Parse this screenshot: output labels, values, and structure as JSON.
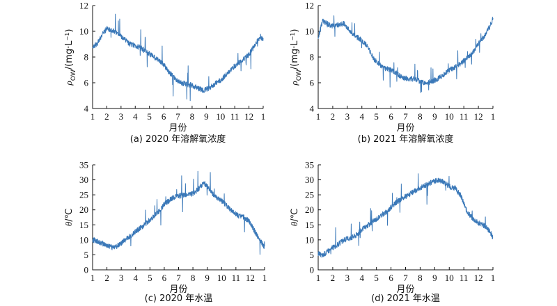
{
  "chart_data": [
    {
      "type": "line",
      "caption": "(a) 2020 年溶解氧浓度",
      "xlabel": "月份",
      "ylabel": "ρOW/(mg·L⁻¹)",
      "ylabel_main": "ρ",
      "ylabel_sub": "OW",
      "ylabel_rest": "/(mg·L",
      "ylabel_sup": "−1",
      "ylabel_close": ")",
      "xlim": [
        1,
        13
      ],
      "ylim": [
        4,
        12
      ],
      "x_ticks": [
        1,
        2,
        3,
        4,
        5,
        6,
        7,
        8,
        9,
        10,
        11,
        12,
        13
      ],
      "x_tick_labels": [
        "1",
        "2",
        "3",
        "4",
        "5",
        "6",
        "7",
        "8",
        "9",
        "10",
        "11",
        "12",
        "1"
      ],
      "y_ticks": [
        4,
        6,
        8,
        10,
        12
      ],
      "y_tick_labels": [
        "4",
        "6",
        "8",
        "10",
        "12"
      ],
      "series": [
        {
          "color": "#3a78b8",
          "x": [
            1.0,
            1.3,
            1.6,
            2.0,
            2.4,
            2.8,
            3.2,
            3.6,
            4.0,
            4.4,
            4.8,
            5.2,
            5.6,
            6.0,
            6.4,
            6.8,
            7.2,
            7.6,
            8.0,
            8.4,
            8.8,
            9.2,
            9.6,
            10.0,
            10.4,
            10.8,
            11.2,
            11.6,
            12.0,
            12.4,
            12.8,
            13.0
          ],
          "y": [
            8.8,
            9.0,
            9.6,
            10.2,
            10.1,
            9.8,
            9.4,
            9.0,
            8.9,
            8.7,
            8.4,
            8.1,
            7.8,
            7.4,
            6.8,
            6.3,
            6.0,
            5.9,
            5.8,
            5.6,
            5.4,
            5.6,
            5.9,
            6.2,
            6.6,
            7.1,
            7.5,
            7.8,
            8.2,
            8.9,
            9.6,
            9.3
          ]
        }
      ]
    },
    {
      "type": "line",
      "caption": "(b) 2021 年溶解氧浓度",
      "xlabel": "月份",
      "ylabel": "ρOW/(mg·L⁻¹)",
      "ylabel_main": "ρ",
      "ylabel_sub": "OW",
      "ylabel_rest": "/(mg·L",
      "ylabel_sup": "−1",
      "ylabel_close": ")",
      "xlim": [
        1,
        13
      ],
      "ylim": [
        4,
        12
      ],
      "x_ticks": [
        1,
        2,
        3,
        4,
        5,
        6,
        7,
        8,
        9,
        10,
        11,
        12,
        13
      ],
      "x_tick_labels": [
        "1",
        "2",
        "3",
        "4",
        "5",
        "6",
        "7",
        "8",
        "9",
        "10",
        "11",
        "12",
        "1"
      ],
      "y_ticks": [
        4,
        6,
        8,
        10,
        12
      ],
      "y_tick_labels": [
        "4",
        "6",
        "8",
        "10",
        "12"
      ],
      "series": [
        {
          "color": "#3a78b8",
          "x": [
            1.0,
            1.3,
            1.6,
            2.0,
            2.4,
            2.8,
            3.2,
            3.6,
            4.0,
            4.4,
            4.8,
            5.2,
            5.6,
            6.0,
            6.4,
            6.8,
            7.2,
            7.6,
            8.0,
            8.4,
            8.8,
            9.2,
            9.6,
            10.0,
            10.4,
            10.8,
            11.2,
            11.6,
            12.0,
            12.4,
            12.8,
            13.0
          ],
          "y": [
            9.5,
            10.8,
            10.6,
            10.4,
            10.5,
            10.6,
            10.0,
            9.6,
            9.3,
            8.8,
            7.9,
            7.4,
            7.1,
            7.0,
            6.7,
            6.4,
            6.3,
            6.3,
            6.1,
            6.0,
            6.1,
            6.3,
            6.6,
            7.0,
            7.2,
            7.5,
            7.9,
            8.3,
            9.0,
            9.6,
            10.4,
            11.0
          ]
        }
      ]
    },
    {
      "type": "line",
      "caption": "(c) 2020 年水温",
      "xlabel": "月份",
      "ylabel": "θ/℃",
      "ylabel_main": "θ",
      "ylabel_sub": "",
      "ylabel_rest": "/℃",
      "ylabel_sup": "",
      "ylabel_close": "",
      "xlim": [
        1,
        13
      ],
      "ylim": [
        0,
        35
      ],
      "x_ticks": [
        1,
        2,
        3,
        4,
        5,
        6,
        7,
        8,
        9,
        10,
        11,
        12,
        13
      ],
      "x_tick_labels": [
        "1",
        "2",
        "3",
        "4",
        "5",
        "6",
        "7",
        "8",
        "9",
        "10",
        "11",
        "12",
        "1"
      ],
      "y_ticks": [
        0,
        5,
        10,
        15,
        20,
        25,
        30,
        35
      ],
      "y_tick_labels": [
        "0",
        "5",
        "10",
        "15",
        "20",
        "25",
        "30",
        "35"
      ],
      "series": [
        {
          "color": "#3a78b8",
          "x": [
            1.0,
            1.3,
            1.6,
            2.0,
            2.4,
            2.8,
            3.2,
            3.6,
            4.0,
            4.4,
            4.8,
            5.2,
            5.6,
            6.0,
            6.4,
            6.8,
            7.2,
            7.6,
            8.0,
            8.4,
            8.8,
            9.2,
            9.6,
            10.0,
            10.4,
            10.8,
            11.2,
            11.6,
            12.0,
            12.4,
            12.8,
            13.0
          ],
          "y": [
            10.0,
            9.6,
            9.0,
            8.2,
            7.4,
            8.2,
            9.6,
            11.2,
            12.8,
            14.2,
            15.8,
            17.6,
            19.4,
            21.8,
            23.4,
            24.4,
            24.8,
            25.0,
            25.4,
            27.0,
            29.0,
            26.5,
            24.2,
            23.0,
            21.2,
            19.2,
            18.0,
            17.4,
            15.8,
            12.0,
            9.0,
            7.6
          ]
        }
      ]
    },
    {
      "type": "line",
      "caption": "(d) 2021 年水温",
      "xlabel": "月份",
      "ylabel": "θ/℃",
      "ylabel_main": "θ",
      "ylabel_sub": "",
      "ylabel_rest": "/℃",
      "ylabel_sup": "",
      "ylabel_close": "",
      "xlim": [
        1,
        13
      ],
      "ylim": [
        0,
        35
      ],
      "x_ticks": [
        1,
        2,
        3,
        4,
        5,
        6,
        7,
        8,
        9,
        10,
        11,
        12,
        13
      ],
      "x_tick_labels": [
        "1",
        "2",
        "3",
        "4",
        "5",
        "6",
        "7",
        "8",
        "9",
        "10",
        "11",
        "12",
        "1"
      ],
      "y_ticks": [
        0,
        5,
        10,
        15,
        20,
        25,
        30,
        35
      ],
      "y_tick_labels": [
        "0",
        "5",
        "10",
        "15",
        "20",
        "25",
        "30",
        "35"
      ],
      "series": [
        {
          "color": "#3a78b8",
          "x": [
            1.0,
            1.3,
            1.6,
            2.0,
            2.4,
            2.8,
            3.2,
            3.6,
            4.0,
            4.4,
            4.8,
            5.2,
            5.6,
            6.0,
            6.4,
            6.8,
            7.2,
            7.6,
            8.0,
            8.4,
            8.8,
            9.2,
            9.6,
            10.0,
            10.4,
            10.8,
            11.2,
            11.6,
            12.0,
            12.4,
            12.8,
            13.0
          ],
          "y": [
            5.5,
            4.8,
            6.0,
            7.4,
            8.6,
            10.0,
            10.6,
            11.6,
            13.4,
            14.8,
            16.2,
            17.8,
            19.0,
            20.8,
            22.6,
            23.8,
            25.0,
            26.2,
            27.4,
            28.2,
            29.2,
            30.0,
            29.4,
            27.8,
            27.2,
            24.6,
            19.6,
            17.2,
            15.6,
            14.8,
            12.8,
            10.6
          ]
        }
      ]
    }
  ]
}
